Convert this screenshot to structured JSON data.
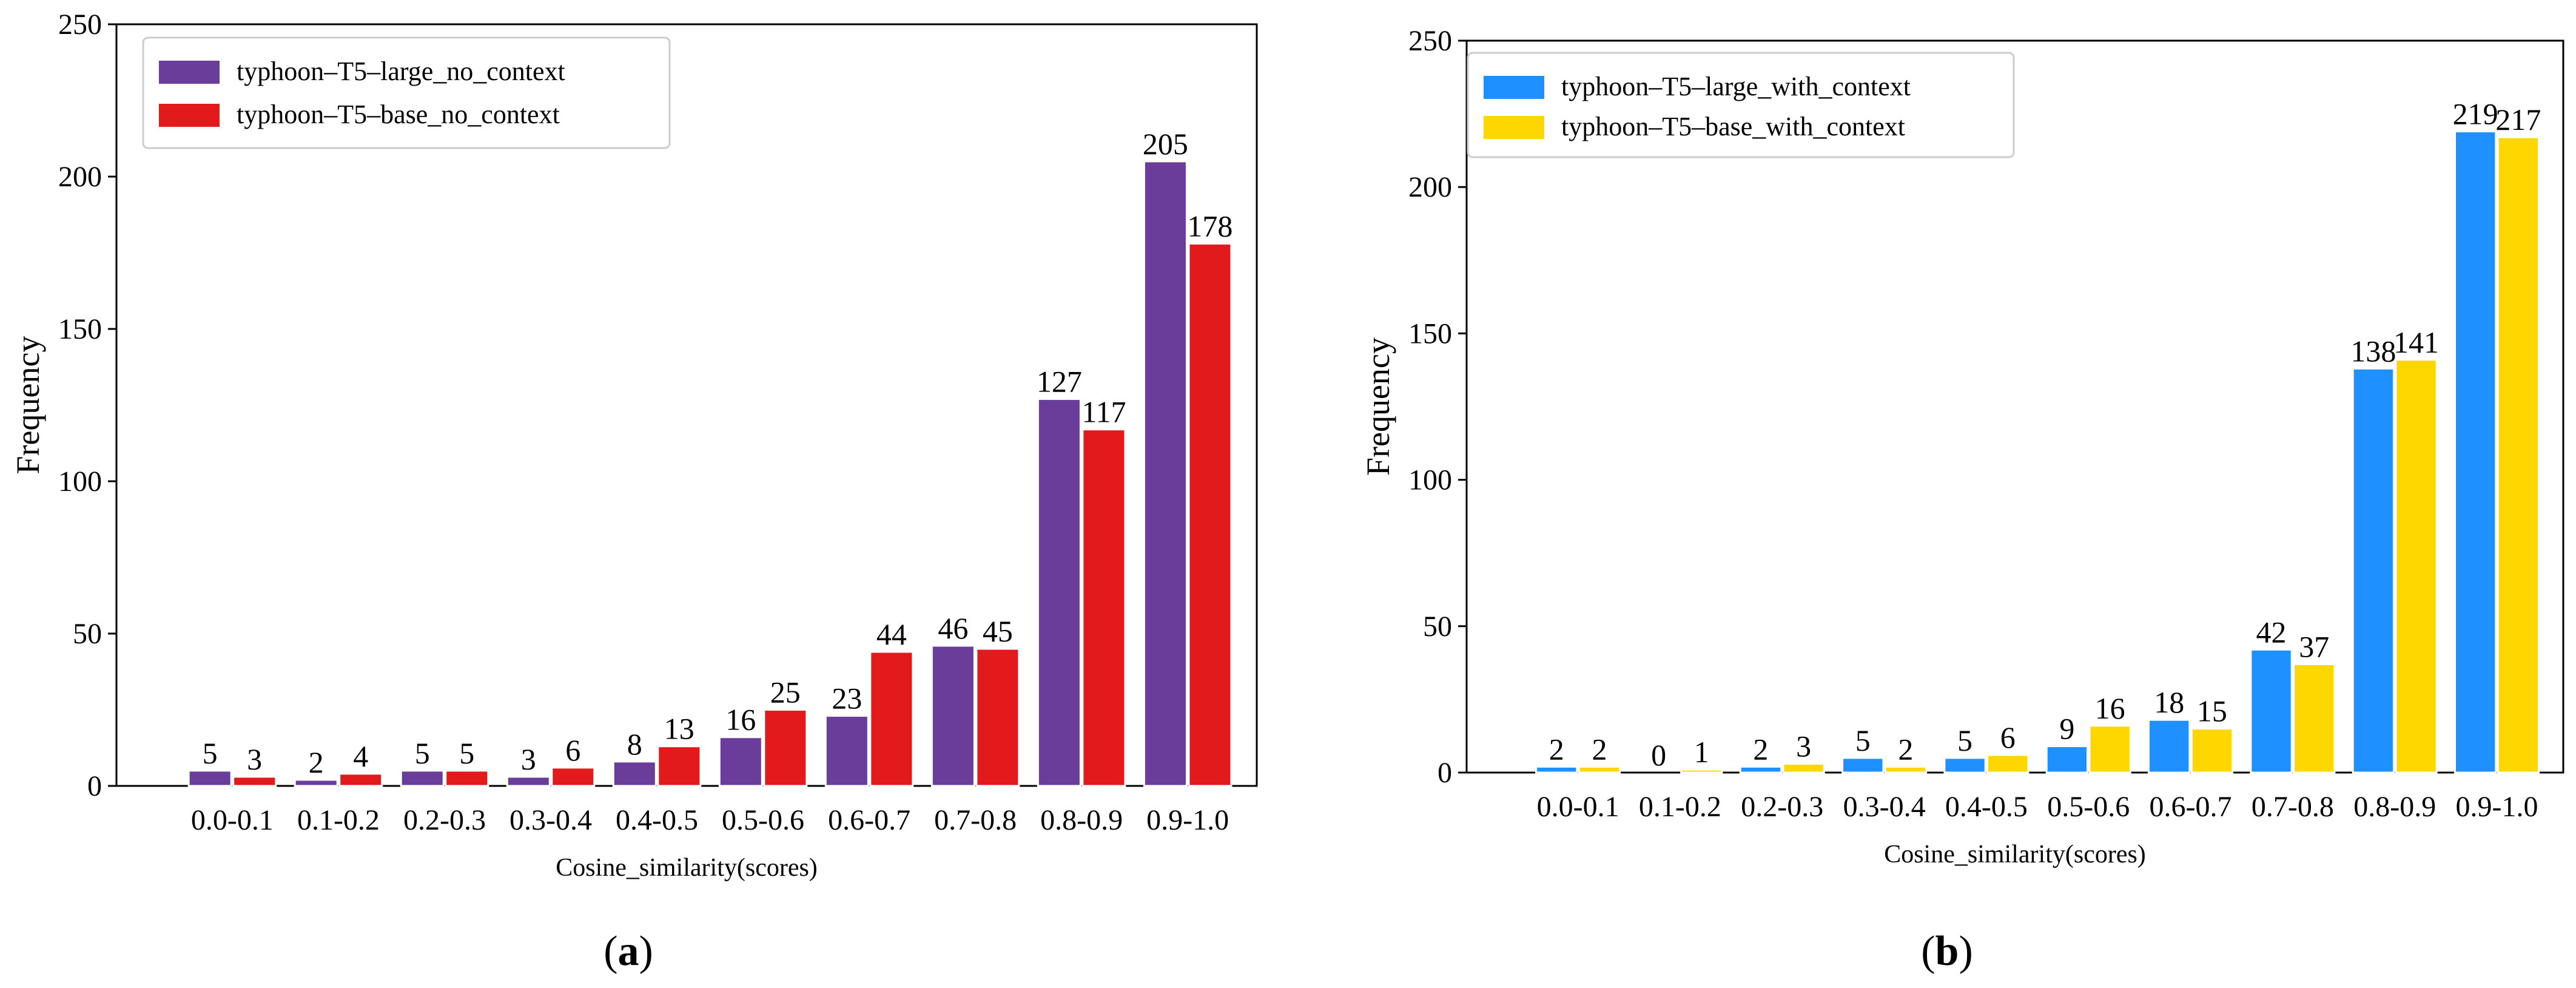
{
  "chart_data": [
    {
      "type": "bar",
      "panel_label": "a",
      "categories": [
        "0.0-0.1",
        "0.1-0.2",
        "0.2-0.3",
        "0.3-0.4",
        "0.4-0.5",
        "0.5-0.6",
        "0.6-0.7",
        "0.7-0.8",
        "0.8-0.9",
        "0.9-1.0"
      ],
      "series": [
        {
          "name": "typhoon–T5–large_no_context",
          "color": "#6A3D9A",
          "values": [
            5,
            2,
            5,
            3,
            8,
            16,
            23,
            46,
            127,
            205
          ]
        },
        {
          "name": "typhoon–T5–base_no_context",
          "color": "#E31A1C",
          "values": [
            3,
            4,
            5,
            6,
            13,
            25,
            44,
            45,
            117,
            178
          ]
        }
      ],
      "title": "",
      "xlabel": "Cosine_similarity(scores)",
      "ylabel": "Frequency",
      "ylim": [
        0,
        250
      ],
      "yticks": [
        0,
        50,
        100,
        150,
        200,
        250
      ],
      "legend": "top-left",
      "grid": false
    },
    {
      "type": "bar",
      "panel_label": "b",
      "categories": [
        "0.0-0.1",
        "0.1-0.2",
        "0.2-0.3",
        "0.3-0.4",
        "0.4-0.5",
        "0.5-0.6",
        "0.6-0.7",
        "0.7-0.8",
        "0.8-0.9",
        "0.9-1.0"
      ],
      "series": [
        {
          "name": "typhoon–T5–large_with_context",
          "color": "#1E90FF",
          "values": [
            2,
            0,
            2,
            5,
            5,
            9,
            18,
            42,
            138,
            219
          ]
        },
        {
          "name": "typhoon–T5–base_with_context",
          "color": "#FFD700",
          "values": [
            2,
            1,
            3,
            2,
            6,
            16,
            15,
            37,
            141,
            217
          ]
        }
      ],
      "title": "",
      "xlabel": "Cosine_similarity(scores)",
      "ylabel": "Frequency",
      "ylim": [
        0,
        250
      ],
      "yticks": [
        0,
        50,
        100,
        150,
        200,
        250
      ],
      "legend": "top-left",
      "grid": false
    }
  ]
}
